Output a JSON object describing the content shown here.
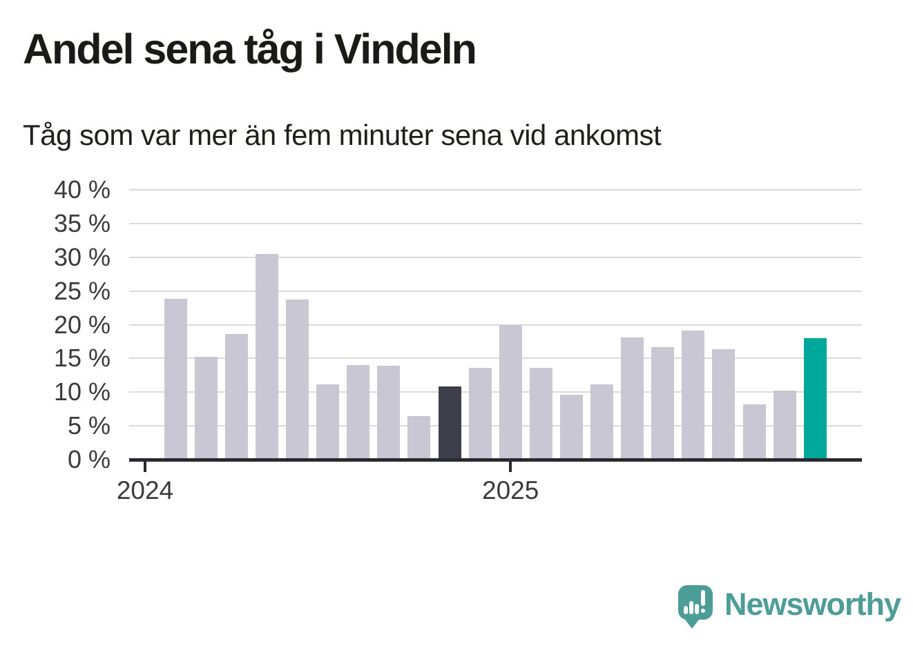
{
  "title": "Andel sena tåg i Vindeln",
  "subtitle": "Tåg som var mer än fem minuter sena vid ankomst",
  "chart_data": {
    "type": "bar",
    "unit": "%",
    "ylim": [
      0,
      40
    ],
    "grid": true,
    "y_ticks": [
      {
        "value": 40,
        "label": "40 %"
      },
      {
        "value": 35,
        "label": "35 %"
      },
      {
        "value": 30,
        "label": "30 %"
      },
      {
        "value": 25,
        "label": "25 %"
      },
      {
        "value": 20,
        "label": "20 %"
      },
      {
        "value": 15,
        "label": "15 %"
      },
      {
        "value": 10,
        "label": "10 %"
      },
      {
        "value": 5,
        "label": "5 %"
      },
      {
        "value": 0,
        "label": "0 %"
      }
    ],
    "x_axis": {
      "n_slots": 23,
      "ticks": [
        {
          "label": "2024",
          "slot": 0
        },
        {
          "label": "2025",
          "slot": 12
        }
      ]
    },
    "bars_start_slot": 1,
    "bars": [
      {
        "value": 23.8,
        "role": "default"
      },
      {
        "value": 15.2,
        "role": "default"
      },
      {
        "value": 18.6,
        "role": "default"
      },
      {
        "value": 30.5,
        "role": "default"
      },
      {
        "value": 23.7,
        "role": "default"
      },
      {
        "value": 11.1,
        "role": "default"
      },
      {
        "value": 14.0,
        "role": "default"
      },
      {
        "value": 13.9,
        "role": "default"
      },
      {
        "value": 6.4,
        "role": "default"
      },
      {
        "value": 10.8,
        "role": "dark"
      },
      {
        "value": 13.6,
        "role": "default"
      },
      {
        "value": 20.0,
        "role": "default"
      },
      {
        "value": 13.6,
        "role": "default"
      },
      {
        "value": 9.6,
        "role": "default"
      },
      {
        "value": 11.1,
        "role": "default"
      },
      {
        "value": 18.1,
        "role": "default"
      },
      {
        "value": 16.7,
        "role": "default"
      },
      {
        "value": 19.1,
        "role": "default"
      },
      {
        "value": 16.4,
        "role": "default"
      },
      {
        "value": 8.2,
        "role": "default"
      },
      {
        "value": 10.2,
        "role": "default"
      },
      {
        "value": 18.0,
        "role": "highlight"
      }
    ],
    "colors": {
      "default": "#c9c7d3",
      "dark": "#3f3e4b",
      "highlight": "#00a79b",
      "gridline": "#dadada",
      "axis": "#2a2930",
      "tick_text": "#3a3a3a"
    },
    "legend_position": "none"
  },
  "footer": {
    "brand": "Newsworthy",
    "brand_color": "#4c9c97",
    "logo_icon": "speech-bubble-bar-chart-exclamation"
  }
}
